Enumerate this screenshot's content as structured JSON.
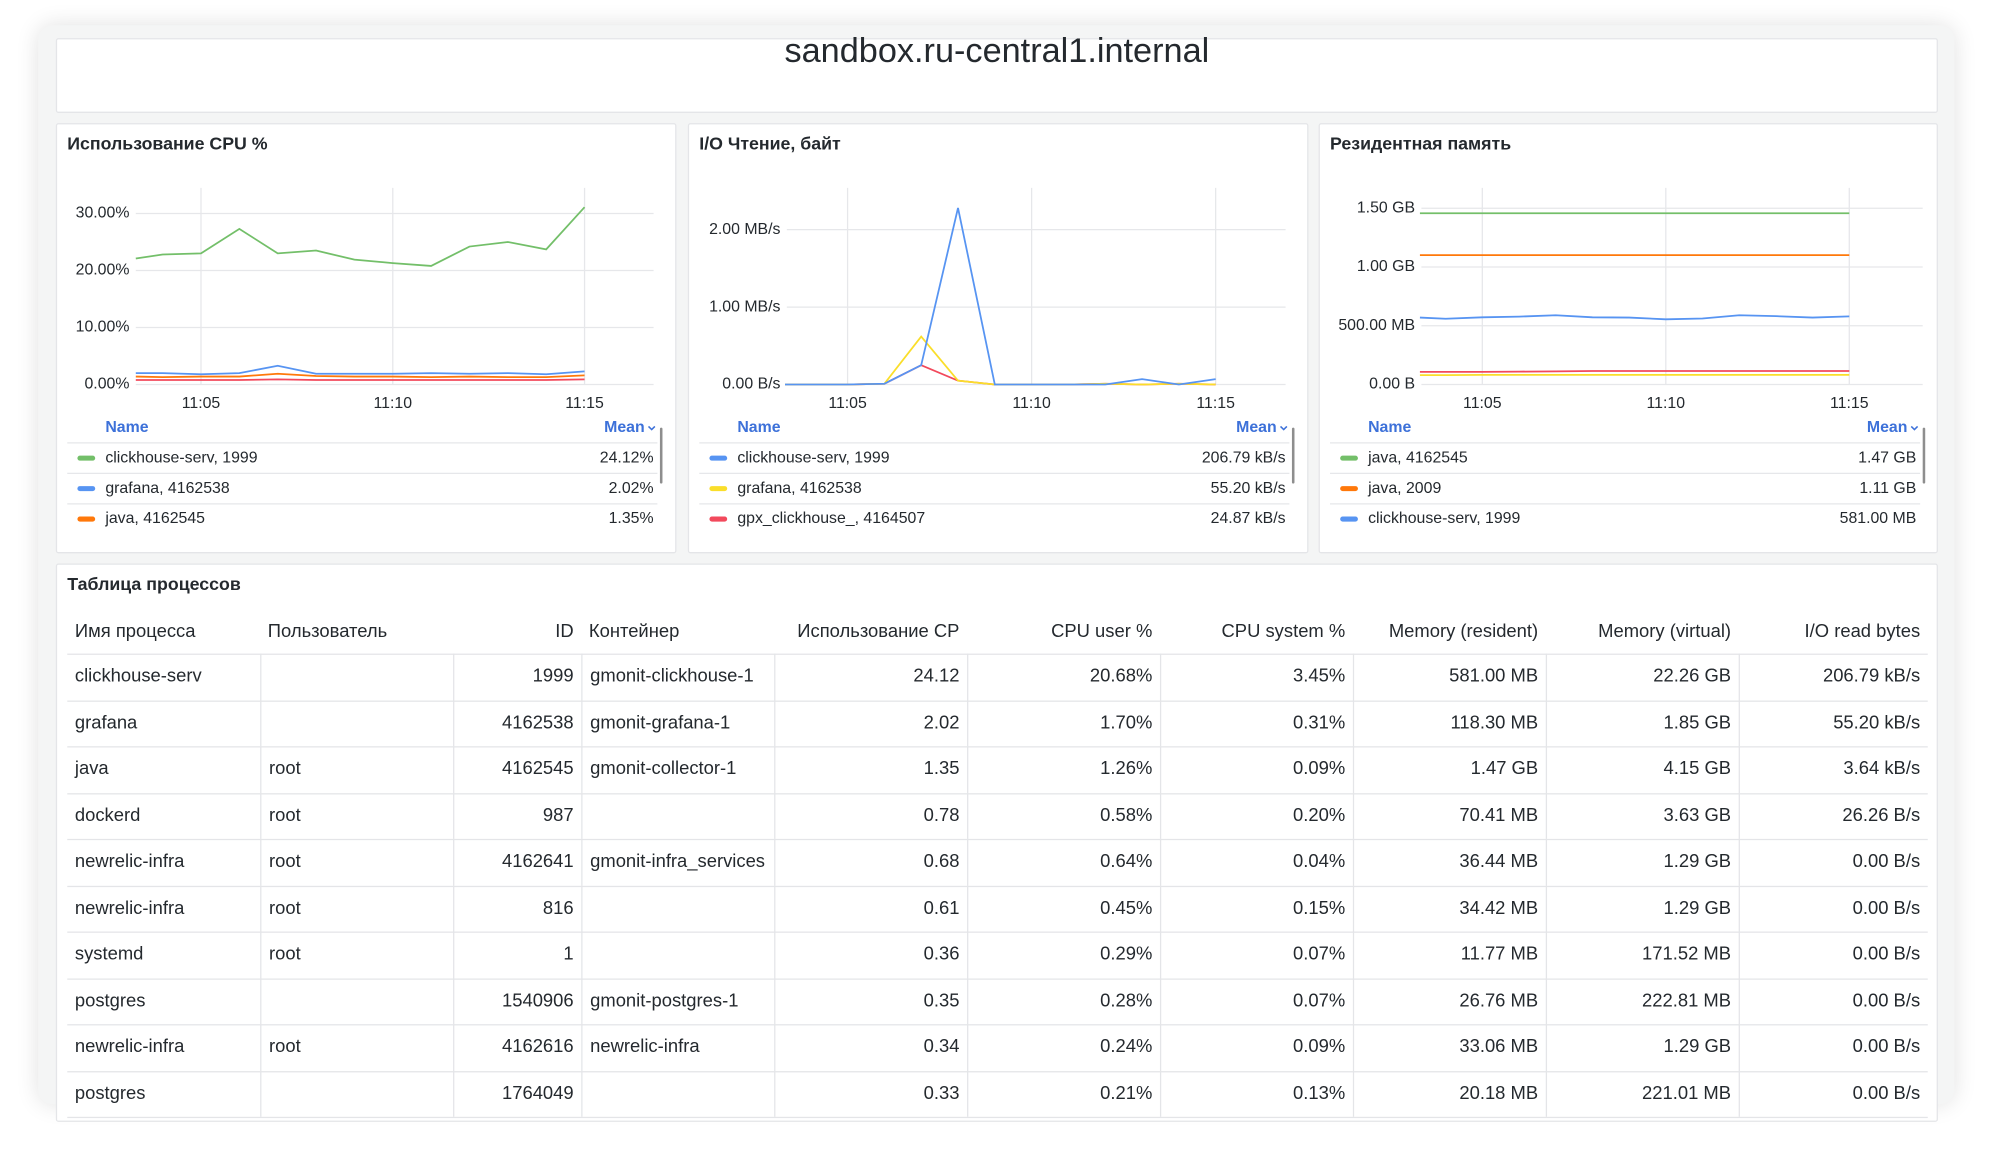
{
  "header": {
    "title": "sandbox.ru-central1.internal"
  },
  "panels": [
    {
      "title": "Использование CPU %",
      "chart": {
        "type": "line",
        "x": [
          3.3,
          4,
          5,
          6,
          7,
          8,
          9,
          10,
          11,
          12,
          13,
          14,
          15
        ],
        "xlim": [
          3.3,
          16.8
        ],
        "xticks": [
          {
            "value": 5,
            "label": "11:05"
          },
          {
            "value": 10,
            "label": "11:10"
          },
          {
            "value": 15,
            "label": "11:15"
          }
        ],
        "ylim": [
          0,
          34.5
        ],
        "yticks": [
          {
            "value": 0,
            "label": "0.00%"
          },
          {
            "value": 10,
            "label": "10.00%"
          },
          {
            "value": 20,
            "label": "20.00%"
          },
          {
            "value": 30,
            "label": "30.00%"
          }
        ],
        "grid": true,
        "series": [
          {
            "name": "clickhouse-serv, 1999",
            "color": "#73bf69",
            "mean": "24.12%",
            "values": [
              22.1,
              22.8,
              23,
              27.3,
              23,
              23.5,
              21.9,
              21.3,
              20.8,
              24.2,
              25,
              23.7,
              31.1
            ]
          },
          {
            "name": "grafana, 4162538",
            "color": "#5794f2",
            "mean": "2.02%",
            "values": [
              2.0,
              2.0,
              1.8,
              2.0,
              3.3,
              1.9,
              1.9,
              1.9,
              2.0,
              1.9,
              2.0,
              1.8,
              2.3
            ]
          },
          {
            "name": "java, 4162545",
            "color": "#ff780a",
            "mean": "1.35%",
            "values": [
              1.4,
              1.3,
              1.4,
              1.4,
              1.9,
              1.5,
              1.4,
              1.4,
              1.3,
              1.4,
              1.3,
              1.3,
              1.6
            ]
          },
          {
            "color": "#f2495c",
            "values": [
              0.8,
              0.8,
              0.8,
              0.8,
              0.9,
              0.8,
              0.8,
              0.8,
              0.8,
              0.8,
              0.8,
              0.8,
              0.9
            ]
          }
        ]
      },
      "legend": {
        "name_header": "Name",
        "value_header": "Mean"
      }
    },
    {
      "title": "I/O Чтение, байт",
      "chart": {
        "type": "line",
        "x": [
          3.3,
          4,
          5,
          6,
          7,
          8,
          9,
          10,
          11,
          12,
          13,
          14,
          15
        ],
        "xlim": [
          3.35,
          16.9
        ],
        "xticks": [
          {
            "value": 5,
            "label": "11:05"
          },
          {
            "value": 10,
            "label": "11:10"
          },
          {
            "value": 15,
            "label": "11:15"
          }
        ],
        "ylim": [
          0,
          2.54
        ],
        "yticks": [
          {
            "value": 0,
            "label": "0.00 B/s"
          },
          {
            "value": 1,
            "label": "1.00 MB/s"
          },
          {
            "value": 2,
            "label": "2.00 MB/s"
          }
        ],
        "grid": true,
        "series": [
          {
            "name": "clickhouse-serv, 1999",
            "color": "#5794f2",
            "mean": "206.79 kB/s",
            "values": [
              0,
              0,
              0,
              0.01,
              0.25,
              2.28,
              0,
              0,
              0,
              0,
              0.07,
              0,
              0.07
            ]
          },
          {
            "name": "grafana, 4162538",
            "color": "#fade2a",
            "mean": "55.20 kB/s",
            "values": [
              0,
              0,
              0,
              0.01,
              0.62,
              0.05,
              0,
              0,
              0,
              0.01,
              0,
              0.01,
              0
            ]
          },
          {
            "name": "gpx_clickhouse_, 4164507",
            "color": "#f2495c",
            "mean": "24.87 kB/s",
            "values": [
              0,
              0,
              0,
              0.01,
              0.25,
              0.05,
              0,
              0,
              0,
              0.01,
              0,
              0.01,
              0
            ]
          }
        ]
      },
      "legend": {
        "name_header": "Name",
        "value_header": "Mean"
      }
    },
    {
      "title": "Резидентная память",
      "chart": {
        "type": "line",
        "x": [
          3.3,
          4,
          5,
          6,
          7,
          8,
          9,
          10,
          11,
          12,
          13,
          14,
          15
        ],
        "xlim": [
          3.34,
          17.0
        ],
        "xticks": [
          {
            "value": 5,
            "label": "11:05"
          },
          {
            "value": 10,
            "label": "11:10"
          },
          {
            "value": 15,
            "label": "11:15"
          }
        ],
        "ylim": [
          0,
          1674
        ],
        "yticks": [
          {
            "value": 0,
            "label": "0.00 B"
          },
          {
            "value": 500,
            "label": "500.00 MB"
          },
          {
            "value": 1000,
            "label": "1.00 GB"
          },
          {
            "value": 1500,
            "label": "1.50 GB"
          }
        ],
        "grid": true,
        "series": [
          {
            "name": "java, 4162545",
            "color": "#73bf69",
            "mean": "1.47 GB",
            "values": [
              1458,
              1458,
              1458,
              1458,
              1458,
              1458,
              1458,
              1458,
              1458,
              1458,
              1458,
              1458,
              1458
            ]
          },
          {
            "name": "java, 2009",
            "color": "#ff780a",
            "mean": "1.11 GB",
            "values": [
              1101,
              1101,
              1101,
              1101,
              1101,
              1101,
              1101,
              1101,
              1101,
              1101,
              1101,
              1101,
              1101
            ]
          },
          {
            "name": "clickhouse-serv, 1999",
            "color": "#5794f2",
            "mean": "581.00 MB",
            "values": [
              570,
              560,
              572,
              578,
              590,
              572,
              570,
              555,
              562,
              590,
              582,
              570,
              580
            ]
          },
          {
            "color": "#f2495c",
            "values": [
              108,
              108,
              108,
              110,
              112,
              115,
              115,
              115,
              115,
              115,
              115,
              115,
              115
            ]
          },
          {
            "color": "#fade2a",
            "values": [
              80,
              80,
              82,
              82,
              82,
              82,
              82,
              82,
              82,
              82,
              82,
              82,
              82
            ]
          }
        ]
      },
      "legend": {
        "name_header": "Name",
        "value_header": "Mean"
      }
    }
  ],
  "table": {
    "title": "Таблица процессов",
    "columns": [
      "Имя процесса",
      "Пользователь",
      "ID",
      "Контейнер",
      "Использование CP",
      "CPU user %",
      "CPU system %",
      "Memory (resident)",
      "Memory (virtual)",
      "I/O read bytes"
    ],
    "rows": [
      [
        "clickhouse-serv",
        "",
        "1999",
        "gmonit-clickhouse-1",
        "24.12",
        "20.68%",
        "3.45%",
        "581.00 MB",
        "22.26 GB",
        "206.79 kB/s"
      ],
      [
        "grafana",
        "",
        "4162538",
        "gmonit-grafana-1",
        "2.02",
        "1.70%",
        "0.31%",
        "118.30 MB",
        "1.85 GB",
        "55.20 kB/s"
      ],
      [
        "java",
        "root",
        "4162545",
        "gmonit-collector-1",
        "1.35",
        "1.26%",
        "0.09%",
        "1.47 GB",
        "4.15 GB",
        "3.64 kB/s"
      ],
      [
        "dockerd",
        "root",
        "987",
        "",
        "0.78",
        "0.58%",
        "0.20%",
        "70.41 MB",
        "3.63 GB",
        "26.26 B/s"
      ],
      [
        "newrelic-infra",
        "root",
        "4162641",
        "gmonit-infra_services",
        "0.68",
        "0.64%",
        "0.04%",
        "36.44 MB",
        "1.29 GB",
        "0.00 B/s"
      ],
      [
        "newrelic-infra",
        "root",
        "816",
        "",
        "0.61",
        "0.45%",
        "0.15%",
        "34.42 MB",
        "1.29 GB",
        "0.00 B/s"
      ],
      [
        "systemd",
        "root",
        "1",
        "",
        "0.36",
        "0.29%",
        "0.07%",
        "11.77 MB",
        "171.52 MB",
        "0.00 B/s"
      ],
      [
        "postgres",
        "",
        "1540906",
        "gmonit-postgres-1",
        "0.35",
        "0.28%",
        "0.07%",
        "26.76 MB",
        "222.81 MB",
        "0.00 B/s"
      ],
      [
        "newrelic-infra",
        "root",
        "4162616",
        "newrelic-infra",
        "0.34",
        "0.24%",
        "0.09%",
        "33.06 MB",
        "1.29 GB",
        "0.00 B/s"
      ],
      [
        "postgres",
        "",
        "1764049",
        "",
        "0.33",
        "0.21%",
        "0.13%",
        "20.18 MB",
        "221.01 MB",
        "0.00 B/s"
      ]
    ]
  }
}
